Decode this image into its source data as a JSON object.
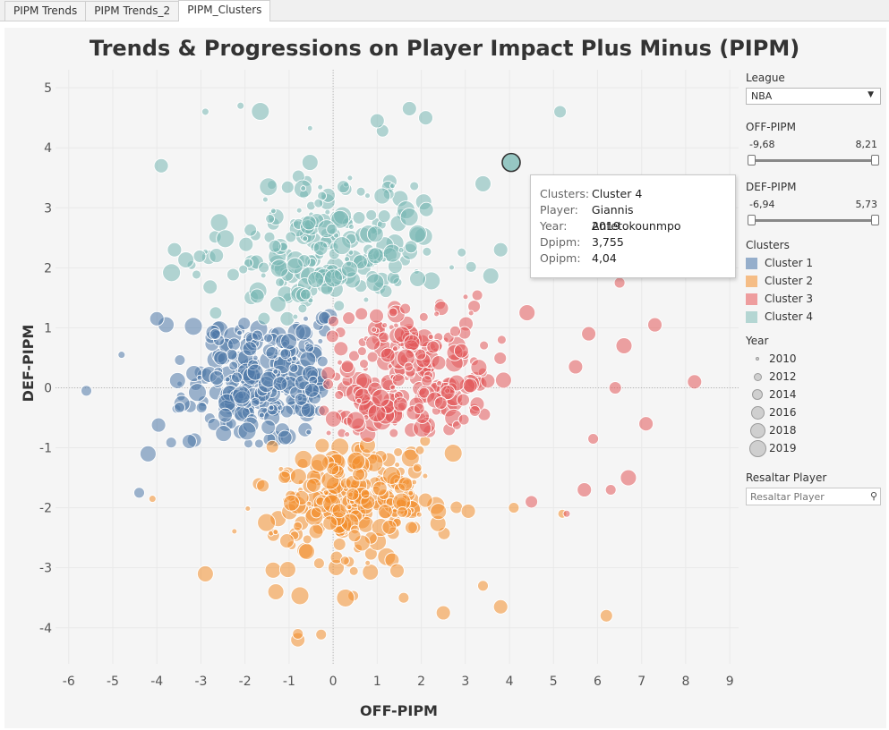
{
  "tabs": [
    "PIPM Trends",
    "PIPM Trends_2",
    "PIPM_Clusters"
  ],
  "active_tab": 2,
  "sidebar": {
    "league": {
      "label": "League",
      "value": "NBA"
    },
    "off_filter": {
      "label": "OFF-PIPM",
      "min": "-9,68",
      "max": "8,21"
    },
    "def_filter": {
      "label": "DEF-PIPM",
      "min": "-6,94",
      "max": "5,73"
    },
    "clusters_label": "Clusters",
    "year_label": "Year",
    "year_sizes": [
      "2010",
      "2012",
      "2014",
      "2016",
      "2018",
      "2019"
    ],
    "highlight": {
      "label": "Resaltar Player",
      "placeholder": "Resaltar Player"
    }
  },
  "tooltip": {
    "rows": [
      {
        "k": "Clusters:",
        "v": "Cluster 4"
      },
      {
        "k": "Player:",
        "v": "Giannis Antetokounmpo"
      },
      {
        "k": "Year:",
        "v": "2019"
      },
      {
        "k": "Dpipm:",
        "v": "3,755"
      },
      {
        "k": "Opipm:",
        "v": "4,04"
      }
    ]
  },
  "chart_data": {
    "type": "scatter",
    "title": "Trends & Progressions on Player Impact Plus Minus (PIPM)",
    "xlabel": "OFF-PIPM",
    "ylabel": "DEF-PIPM",
    "xlim": [
      -6.3,
      9.2
    ],
    "ylim": [
      -4.6,
      5.3
    ],
    "xticks": [
      "-6",
      "-5",
      "-4",
      "-3",
      "-2",
      "-1",
      "0",
      "1",
      "2",
      "3",
      "4",
      "5",
      "6",
      "7",
      "8",
      "9"
    ],
    "yticks": [
      "5",
      "4",
      "3",
      "2",
      "1",
      "0",
      "-1",
      "-2",
      "-3",
      "-4"
    ],
    "legend": [
      {
        "name": "Cluster 1",
        "color": "#4e79a7"
      },
      {
        "name": "Cluster 2",
        "color": "#f28e2b"
      },
      {
        "name": "Cluster 3",
        "color": "#e15759"
      },
      {
        "name": "Cluster 4",
        "color": "#76b7b2"
      }
    ],
    "clusters": [
      {
        "name": "Cluster 1",
        "center": [
          -1.6,
          0.2
        ],
        "spread": [
          0.9,
          0.65
        ],
        "count": 260
      },
      {
        "name": "Cluster 2",
        "center": [
          0.3,
          -1.9
        ],
        "spread": [
          1.0,
          0.55
        ],
        "count": 250
      },
      {
        "name": "Cluster 3",
        "center": [
          1.6,
          0.1
        ],
        "spread": [
          1.0,
          0.7
        ],
        "count": 230
      },
      {
        "name": "Cluster 4",
        "center": [
          0.0,
          2.1
        ],
        "spread": [
          1.3,
          0.75
        ],
        "count": 230
      }
    ],
    "outliers": [
      {
        "c": 0,
        "x": -5.6,
        "y": -0.05,
        "r": 6
      },
      {
        "c": 0,
        "x": -4.8,
        "y": 0.55,
        "r": 4
      },
      {
        "c": 0,
        "x": -4.0,
        "y": 1.15,
        "r": 8
      },
      {
        "c": 0,
        "x": -4.2,
        "y": -1.1,
        "r": 9
      },
      {
        "c": 0,
        "x": -4.4,
        "y": -1.75,
        "r": 6
      },
      {
        "c": 1,
        "x": -4.1,
        "y": -1.85,
        "r": 4
      },
      {
        "c": 1,
        "x": -2.9,
        "y": -3.1,
        "r": 9
      },
      {
        "c": 1,
        "x": -0.8,
        "y": -4.2,
        "r": 8
      },
      {
        "c": 1,
        "x": -0.8,
        "y": -4.1,
        "r": 6
      },
      {
        "c": 1,
        "x": 1.6,
        "y": -3.5,
        "r": 6
      },
      {
        "c": 1,
        "x": 2.5,
        "y": -3.75,
        "r": 8
      },
      {
        "c": 1,
        "x": 3.4,
        "y": -3.3,
        "r": 6
      },
      {
        "c": 1,
        "x": 3.8,
        "y": -3.65,
        "r": 8
      },
      {
        "c": 1,
        "x": 6.2,
        "y": -3.8,
        "r": 7
      },
      {
        "c": 1,
        "x": 4.1,
        "y": -2.0,
        "r": 6
      },
      {
        "c": 1,
        "x": 5.2,
        "y": -2.1,
        "r": 5
      },
      {
        "c": 1,
        "x": -1.3,
        "y": -3.4,
        "r": 9
      },
      {
        "c": 2,
        "x": 8.2,
        "y": 0.1,
        "r": 8
      },
      {
        "c": 2,
        "x": 7.3,
        "y": 1.05,
        "r": 8
      },
      {
        "c": 2,
        "x": 7.1,
        "y": -0.6,
        "r": 8
      },
      {
        "c": 2,
        "x": 6.7,
        "y": -1.5,
        "r": 9
      },
      {
        "c": 2,
        "x": 5.7,
        "y": -1.7,
        "r": 8
      },
      {
        "c": 2,
        "x": 6.3,
        "y": -1.7,
        "r": 6
      },
      {
        "c": 2,
        "x": 4.5,
        "y": -1.9,
        "r": 7
      },
      {
        "c": 2,
        "x": 5.3,
        "y": -2.1,
        "r": 4
      },
      {
        "c": 2,
        "x": 6.6,
        "y": 0.7,
        "r": 9
      },
      {
        "c": 2,
        "x": 5.8,
        "y": 0.9,
        "r": 8
      },
      {
        "c": 2,
        "x": 6.4,
        "y": 0.0,
        "r": 7
      },
      {
        "c": 2,
        "x": 5.9,
        "y": -0.85,
        "r": 6
      },
      {
        "c": 2,
        "x": 4.4,
        "y": 1.25,
        "r": 9
      },
      {
        "c": 2,
        "x": 6.5,
        "y": 1.75,
        "r": 6
      },
      {
        "c": 2,
        "x": 5.5,
        "y": 0.35,
        "r": 8
      },
      {
        "c": 3,
        "x": 5.15,
        "y": 4.6,
        "r": 7
      },
      {
        "c": 3,
        "x": 2.1,
        "y": 4.5,
        "r": 8
      },
      {
        "c": 3,
        "x": 1.0,
        "y": 4.45,
        "r": 8
      },
      {
        "c": 3,
        "x": -3.9,
        "y": 3.7,
        "r": 8
      },
      {
        "c": 3,
        "x": -2.9,
        "y": 4.6,
        "r": 4
      },
      {
        "c": 3,
        "x": -2.1,
        "y": 4.7,
        "r": 4
      },
      {
        "c": 3,
        "x": 3.4,
        "y": 3.4,
        "r": 9
      },
      {
        "c": 3,
        "x": 3.8,
        "y": 2.3,
        "r": 8
      },
      {
        "c": 3,
        "x": -3.6,
        "y": 2.3,
        "r": 8
      },
      {
        "c": 3,
        "x": 4.8,
        "y": 2.2,
        "r": 8
      },
      {
        "c": 3,
        "x": 5.0,
        "y": 1.9,
        "r": 5
      }
    ],
    "highlighted_point": {
      "player": "Giannis Antetokounmpo",
      "x": 4.04,
      "y": 3.755,
      "year": "2019",
      "cluster": "Cluster 4"
    }
  }
}
